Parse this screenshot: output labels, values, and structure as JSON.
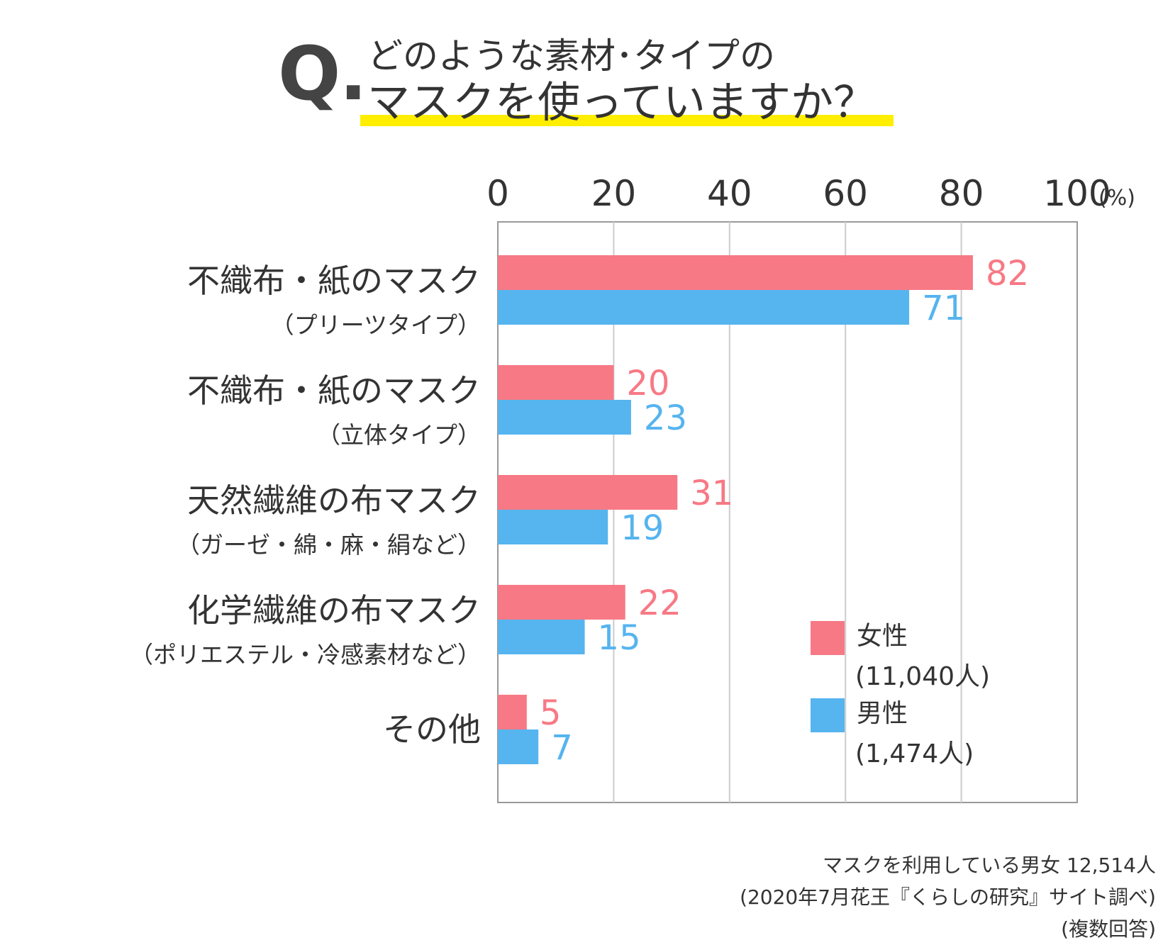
{
  "header": {
    "q_mark": "Q.",
    "line1": "どのような素材･タイプの",
    "line2": "マスクを使っていますか？"
  },
  "chart_data": {
    "type": "bar",
    "orientation": "horizontal",
    "categories": [
      {
        "main": "不織布・紙のマスク",
        "sub": "（プリーツタイプ）"
      },
      {
        "main": "不織布・紙のマスク",
        "sub": "（立体タイプ）"
      },
      {
        "main": "天然繊維の布マスク",
        "sub": "（ガーゼ・綿・麻・絹など）"
      },
      {
        "main": "化学繊維の布マスク",
        "sub": "（ポリエステル・冷感素材など）"
      },
      {
        "main": "その他",
        "sub": ""
      }
    ],
    "series": [
      {
        "name": "女性",
        "count_label": "(11,040人)",
        "color": "#f77985",
        "values": [
          82,
          20,
          31,
          22,
          5
        ]
      },
      {
        "name": "男性",
        "count_label": "(1,474人)",
        "color": "#56b4ef",
        "values": [
          71,
          23,
          19,
          15,
          7
        ]
      }
    ],
    "xlim": [
      0,
      100
    ],
    "xticks": [
      0,
      20,
      40,
      60,
      80,
      100
    ],
    "unit_label": "(%)",
    "grid": true,
    "legend_position": "bottom-right"
  },
  "footer": {
    "line1": "マスクを利用している男女 12,514人",
    "line2": "(2020年7月花王『くらしの研究』サイト調べ)",
    "line3": "(複数回答)"
  }
}
